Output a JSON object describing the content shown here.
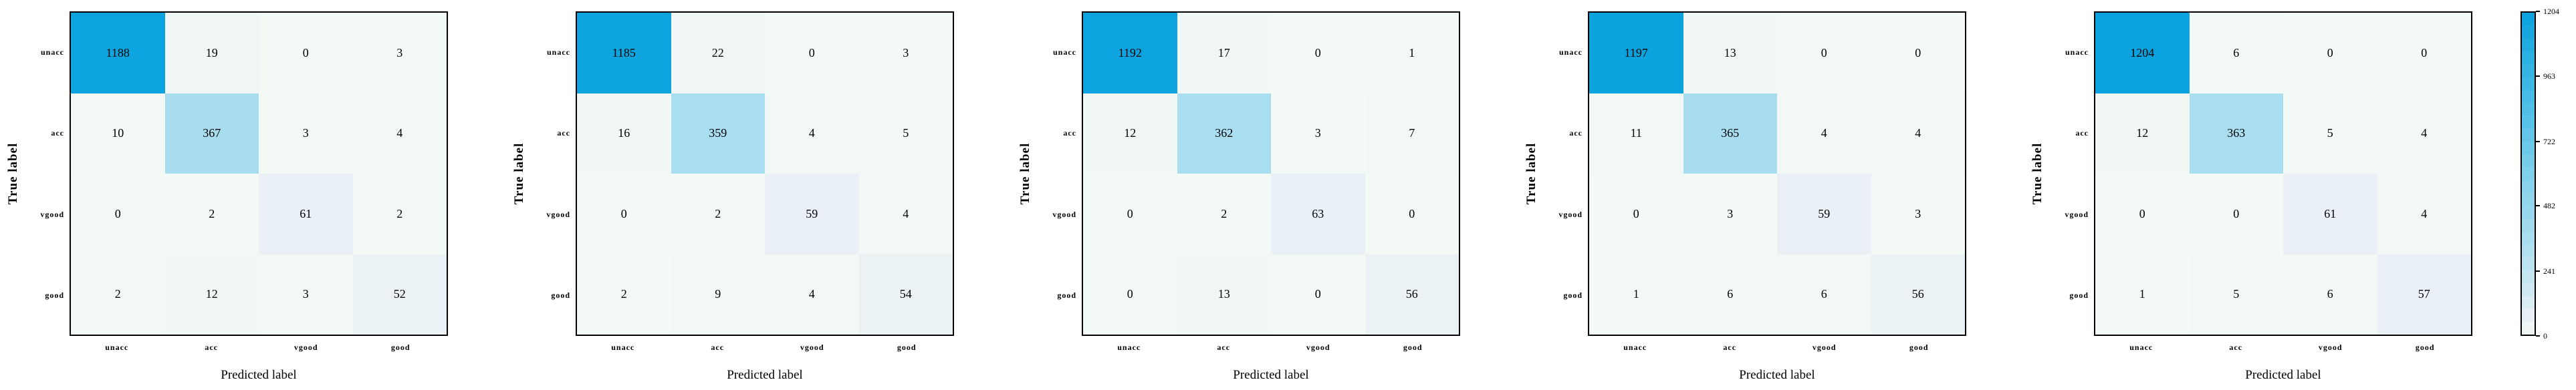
{
  "figure": {
    "background": "#ffffff",
    "xlabel": "Predicted label",
    "ylabel": "True label",
    "classes": [
      "unacc",
      "acc",
      "vgood",
      "good"
    ]
  },
  "chart_data": [
    {
      "type": "heatmap",
      "title": "",
      "xlabel": "Predicted label",
      "ylabel": "True label",
      "x_categories": [
        "unacc",
        "acc",
        "vgood",
        "good"
      ],
      "y_categories": [
        "unacc",
        "acc",
        "vgood",
        "good"
      ],
      "vmin": 0,
      "vmax": 1204,
      "values": [
        [
          1188,
          19,
          0,
          3
        ],
        [
          10,
          367,
          3,
          4
        ],
        [
          0,
          2,
          61,
          2
        ],
        [
          2,
          12,
          3,
          52
        ]
      ]
    },
    {
      "type": "heatmap",
      "title": "",
      "xlabel": "Predicted label",
      "ylabel": "True label",
      "x_categories": [
        "unacc",
        "acc",
        "vgood",
        "good"
      ],
      "y_categories": [
        "unacc",
        "acc",
        "vgood",
        "good"
      ],
      "vmin": 0,
      "vmax": 1204,
      "values": [
        [
          1185,
          22,
          0,
          3
        ],
        [
          16,
          359,
          4,
          5
        ],
        [
          0,
          2,
          59,
          4
        ],
        [
          2,
          9,
          4,
          54
        ]
      ]
    },
    {
      "type": "heatmap",
      "title": "",
      "xlabel": "Predicted label",
      "ylabel": "True label",
      "x_categories": [
        "unacc",
        "acc",
        "vgood",
        "good"
      ],
      "y_categories": [
        "unacc",
        "acc",
        "vgood",
        "good"
      ],
      "vmin": 0,
      "vmax": 1204,
      "values": [
        [
          1192,
          17,
          0,
          1
        ],
        [
          12,
          362,
          3,
          7
        ],
        [
          0,
          2,
          63,
          0
        ],
        [
          0,
          13,
          0,
          56
        ]
      ]
    },
    {
      "type": "heatmap",
      "title": "",
      "xlabel": "Predicted label",
      "ylabel": "True label",
      "x_categories": [
        "unacc",
        "acc",
        "vgood",
        "good"
      ],
      "y_categories": [
        "unacc",
        "acc",
        "vgood",
        "good"
      ],
      "vmin": 0,
      "vmax": 1204,
      "values": [
        [
          1197,
          13,
          0,
          0
        ],
        [
          11,
          365,
          4,
          4
        ],
        [
          0,
          3,
          59,
          3
        ],
        [
          1,
          6,
          6,
          56
        ]
      ]
    },
    {
      "type": "heatmap",
      "title": "",
      "xlabel": "Predicted label",
      "ylabel": "True label",
      "x_categories": [
        "unacc",
        "acc",
        "vgood",
        "good"
      ],
      "y_categories": [
        "unacc",
        "acc",
        "vgood",
        "good"
      ],
      "vmin": 0,
      "vmax": 1204,
      "values": [
        [
          1204,
          6,
          0,
          0
        ],
        [
          12,
          363,
          5,
          4
        ],
        [
          0,
          0,
          61,
          4
        ],
        [
          1,
          5,
          6,
          57
        ]
      ]
    }
  ],
  "colorbar": {
    "vmin": 0,
    "vmax": 1204,
    "ticks": [
      0,
      241,
      482,
      722,
      963,
      1204
    ]
  },
  "colors": {
    "cmap_stops": [
      [
        0.0,
        "#f3f9f5"
      ],
      [
        0.05,
        "#e9f1f6"
      ],
      [
        0.12,
        "#d4ebf2"
      ],
      [
        0.3,
        "#a9ddf0"
      ],
      [
        0.5,
        "#7fd0ea"
      ],
      [
        0.73,
        "#49bde6"
      ],
      [
        1.0,
        "#0aa2de"
      ]
    ],
    "cell_text": "#000000",
    "axis": "#000000"
  }
}
